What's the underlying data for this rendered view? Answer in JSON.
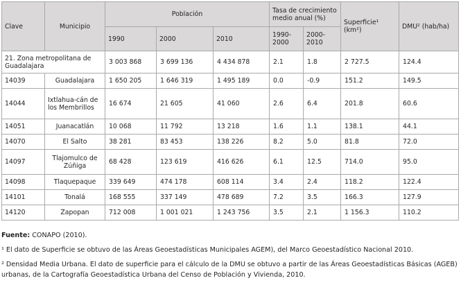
{
  "table": {
    "headers": {
      "clave": "Clave",
      "municipio": "Municipio",
      "poblacion": "Población",
      "tasa": "Tasa de crecimiento medio anual (%)",
      "superficie": "Superficie¹ (km²)",
      "dmu": "DMU² (hab/ha)",
      "y1990": "1990",
      "y2000": "2000",
      "y2010": "2010",
      "r1": "1990-2000",
      "r2": "2000-2010"
    },
    "rows": [
      {
        "clave": "21. Zona metropolitana de Guadalajara",
        "municipio": "",
        "p1990": "3 003 868",
        "p2000": "3 699 136",
        "p2010": "4 434 878",
        "t1": "2.1",
        "t2": "1.8",
        "sup": "2 727.5",
        "dmu": "124.4"
      },
      {
        "clave": "14039",
        "municipio": "Guadalajara",
        "p1990": "1 650 205",
        "p2000": "1 646 319",
        "p2010": "1 495 189",
        "t1": "0.0",
        "t2": "-0.9",
        "sup": "151.2",
        "dmu": "149.5"
      },
      {
        "clave": "14044",
        "municipio": "Ixtlahua-cán de los Membrillos",
        "p1990": "16 674",
        "p2000": "21 605",
        "p2010": "41 060",
        "t1": "2.6",
        "t2": "6.4",
        "sup": "201.8",
        "dmu": "60.6"
      },
      {
        "clave": "14051",
        "municipio": "Juanacatlán",
        "p1990": "10 068",
        "p2000": "11 792",
        "p2010": "13 218",
        "t1": "1.6",
        "t2": "1.1",
        "sup": "138.1",
        "dmu": "44.1"
      },
      {
        "clave": "14070",
        "municipio": "El Salto",
        "p1990": "38 281",
        "p2000": "83 453",
        "p2010": "138 226",
        "t1": "8.2",
        "t2": "5.0",
        "sup": "81.8",
        "dmu": "72.0"
      },
      {
        "clave": "14097",
        "municipio": "Tlajomulco de Zúñiga",
        "p1990": "68 428",
        "p2000": "123 619",
        "p2010": "416 626",
        "t1": "6.1",
        "t2": "12.5",
        "sup": "714.0",
        "dmu": "95.0"
      },
      {
        "clave": "14098",
        "municipio": "Tlaquepaque",
        "p1990": "339 649",
        "p2000": "474 178",
        "p2010": "608 114",
        "t1": "3.4",
        "t2": "2.4",
        "sup": "118.2",
        "dmu": "122.4"
      },
      {
        "clave": "14101",
        "municipio": "Tonalá",
        "p1990": "168 555",
        "p2000": "337 149",
        "p2010": "478 689",
        "t1": "7.2",
        "t2": "3.5",
        "sup": "166.3",
        "dmu": "127.9"
      },
      {
        "clave": "14120",
        "municipio": "Zapopan",
        "p1990": "712 008",
        "p2000": "1 001 021",
        "p2010": "1 243 756",
        "t1": "3.5",
        "t2": "2.1",
        "sup": "1 156.3",
        "dmu": "110.2"
      }
    ]
  },
  "notes": {
    "fuente_label": "Fuente:",
    "fuente_text": " CONAPO (2010).",
    "note1": "¹ El dato de Superficie se obtuvo de las Áreas Geoestadísticas Municipales AGEM), del Marco Geoestadístico Nacional 2010.",
    "note2a": "² Densidad Media Urbana. El dato de superficie para el cálculo de la DMU se obtuvo a partir de las Áreas Geoestadísticas Básicas (AGEB)",
    "note2b": "urbanas, de la Cartografía Geoestadística Urbana del Censo de Población y Vivienda, 2010."
  }
}
